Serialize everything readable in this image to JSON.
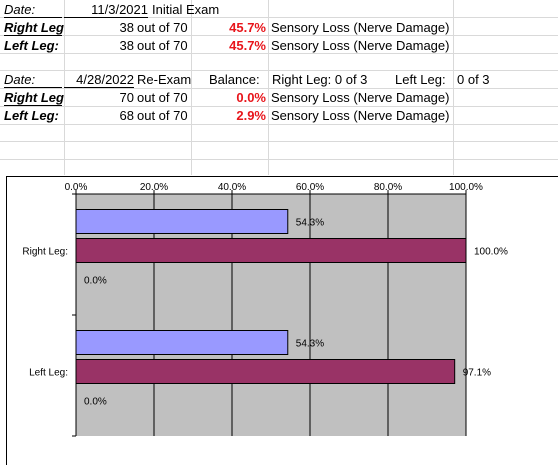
{
  "exam1": {
    "date_label": "Date:",
    "date": "11/3/2021",
    "title": "Initial Exam",
    "rows": [
      {
        "leg": "Right Leg",
        "score": "38",
        "out_of": "out of 70",
        "pct": "45.7%",
        "desc": "Sensory Loss (Nerve Damage)"
      },
      {
        "leg": "Left Leg:",
        "score": "38",
        "out_of": "out of 70",
        "pct": "45.7%",
        "desc": "Sensory Loss (Nerve Damage)"
      }
    ]
  },
  "exam2": {
    "date_label": "Date:",
    "date": "4/28/2022",
    "title": "Re-Exam",
    "balance_label": "Balance:",
    "balance_right": "Right Leg: 0 of 3",
    "balance_left_label": "Left Leg:",
    "balance_left_value": "0 of 3",
    "rows": [
      {
        "leg": "Right Leg",
        "score": "70",
        "out_of": "out of 70",
        "pct": "0.0%",
        "desc": "Sensory Loss (Nerve Damage)"
      },
      {
        "leg": "Left Leg:",
        "score": "68",
        "out_of": "out of 70",
        "pct": "2.9%",
        "desc": "Sensory Loss (Nerve Damage)"
      }
    ]
  },
  "colors": {
    "series_a": "#9999ff",
    "series_b": "#993366",
    "plot_bg": "#c0c0c0",
    "grid": "#000000"
  },
  "chart_data": {
    "type": "bar",
    "orientation": "horizontal",
    "categories": [
      "Right Leg:",
      "Left Leg:"
    ],
    "series": [
      {
        "values": [
          54.3,
          54.3
        ],
        "labels": [
          "54.3%",
          "54.3%"
        ]
      },
      {
        "values": [
          100.0,
          97.1
        ],
        "labels": [
          "100.0%",
          "97.1%"
        ]
      },
      {
        "values": [
          0.0,
          0.0
        ],
        "labels": [
          "0.0%",
          "0.0%"
        ]
      }
    ],
    "xlim": [
      0,
      100
    ],
    "x_ticks": [
      "0.0%",
      "20.0%",
      "40.0%",
      "60.0%",
      "80.0%",
      "100.0%"
    ],
    "grid": true,
    "legend": "none"
  }
}
